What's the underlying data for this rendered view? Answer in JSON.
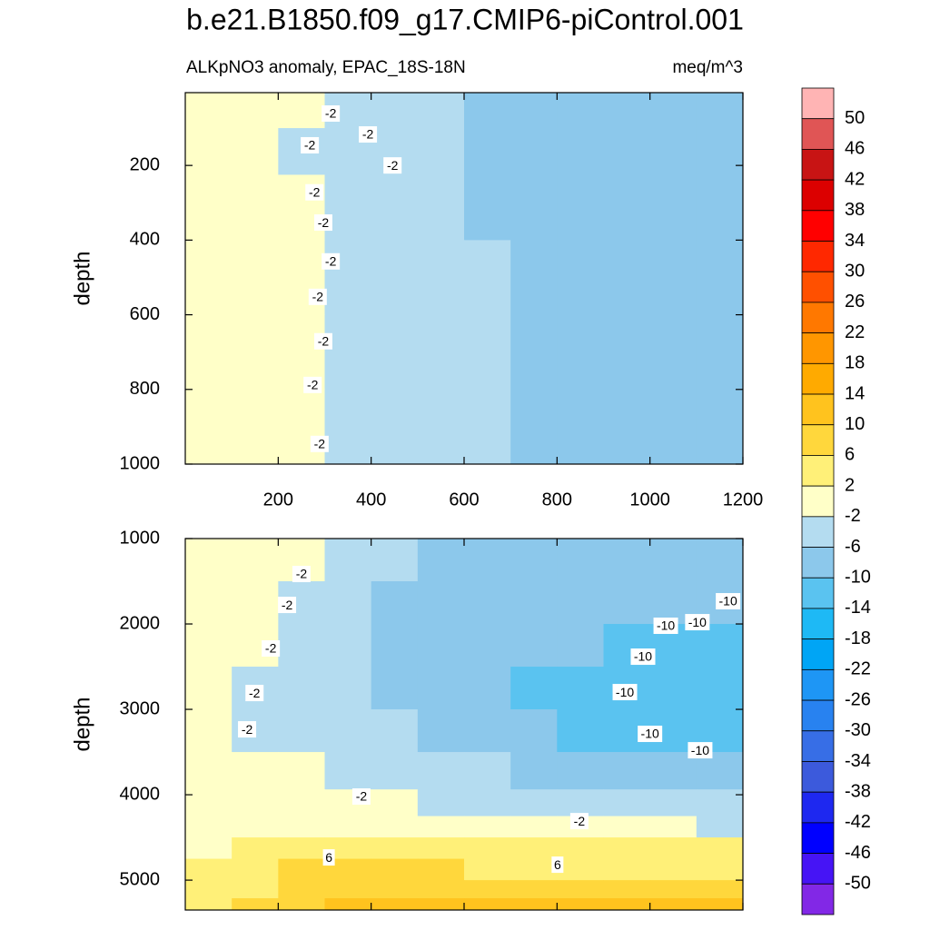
{
  "chart_data": {
    "type": "contour",
    "title": "b.e21.B1850.f09_g17.CMIP6-piControl.001",
    "subtitle_left": "ALKpNO3 anomaly, EPAC_18S-18N",
    "subtitle_right": "meq/m^3",
    "colorbar": {
      "levels": [
        50,
        46,
        42,
        38,
        34,
        30,
        26,
        22,
        18,
        14,
        10,
        6,
        2,
        -2,
        -6,
        -10,
        -14,
        -18,
        -22,
        -26,
        -30,
        -34,
        -38,
        -42,
        -46,
        -50
      ],
      "colors": [
        "#ffb4b4",
        "#e05555",
        "#c81414",
        "#dc0000",
        "#ff0000",
        "#ff2800",
        "#ff5000",
        "#ff7800",
        "#ff9600",
        "#ffaa00",
        "#ffc31e",
        "#ffd73c",
        "#fff078",
        "#ffffc8",
        "#b4dcf0",
        "#8cc8eb",
        "#5ac3f0",
        "#1eb9f5",
        "#00a5f5",
        "#1e96f5",
        "#2882f0",
        "#376ee6",
        "#3c5adc",
        "#1e28f0",
        "#0000ff",
        "#4614f5",
        "#8228e6"
      ]
    },
    "panels": [
      {
        "ylabel": "depth",
        "xlim": [
          0,
          1200
        ],
        "ylim": [
          5,
          1000
        ],
        "xticks": [
          200,
          400,
          600,
          800,
          1000,
          1200
        ],
        "xtick_labels": true,
        "yticks": [
          200,
          400,
          600,
          800,
          1000
        ],
        "y_reversed": true,
        "x": [
          50,
          150,
          250,
          350,
          450,
          550,
          650,
          750,
          850,
          950,
          1050,
          1150
        ],
        "y": [
          50,
          150,
          300,
          500,
          700,
          900
        ],
        "z": [
          [
            0,
            0,
            0,
            -4,
            -4,
            -4,
            -7,
            -7,
            -7,
            -7,
            -7,
            -7
          ],
          [
            0,
            0,
            -4,
            -4,
            -4,
            -4,
            -7,
            -7,
            -7,
            -7,
            -7,
            -7
          ],
          [
            0,
            0,
            0,
            -4,
            -4,
            -4,
            -7,
            -7,
            -7,
            -7,
            -7,
            -7
          ],
          [
            0,
            0,
            0,
            -4,
            -4,
            -4,
            -4,
            -7,
            -7,
            -7,
            -7,
            -7
          ],
          [
            0,
            0,
            0,
            -4,
            -4,
            -4,
            -4,
            -7,
            -7,
            -7,
            -7,
            -7
          ],
          [
            0,
            0,
            0,
            -4,
            -4,
            -4,
            -4,
            -7,
            -7,
            -7,
            -7,
            -7
          ]
        ],
        "annotations": [
          {
            "x": 313,
            "y": 61,
            "value": -2
          },
          {
            "x": 393,
            "y": 117,
            "value": -2
          },
          {
            "x": 268,
            "y": 146,
            "value": -2
          },
          {
            "x": 446,
            "y": 200,
            "value": -2
          },
          {
            "x": 278,
            "y": 272,
            "value": -2
          },
          {
            "x": 297,
            "y": 353,
            "value": -2
          },
          {
            "x": 313,
            "y": 457,
            "value": -2
          },
          {
            "x": 285,
            "y": 552,
            "value": -2
          },
          {
            "x": 297,
            "y": 671,
            "value": -2
          },
          {
            "x": 274,
            "y": 788,
            "value": -2
          },
          {
            "x": 289,
            "y": 946,
            "value": -2
          }
        ]
      },
      {
        "ylabel": "depth",
        "xlim": [
          0,
          1200
        ],
        "ylim": [
          1000,
          5350
        ],
        "xticks": [
          200,
          400,
          600,
          800,
          1000,
          1200
        ],
        "xtick_labels": false,
        "yticks": [
          1000,
          2000,
          3000,
          4000,
          5000
        ],
        "y_reversed": true,
        "x": [
          50,
          150,
          250,
          350,
          450,
          550,
          650,
          750,
          850,
          950,
          1050,
          1150
        ],
        "y": [
          1250,
          1750,
          2250,
          2750,
          3250,
          3750,
          4125,
          4375,
          4625,
          4875,
          5125,
          5300
        ],
        "z": [
          [
            0,
            0,
            0,
            -4,
            -4,
            -7,
            -7,
            -7,
            -7,
            -7,
            -7,
            -7
          ],
          [
            0,
            0,
            -4,
            -4,
            -7,
            -7,
            -7,
            -7,
            -7,
            -7,
            -7,
            -7
          ],
          [
            0,
            0,
            -4,
            -4,
            -7,
            -7,
            -7,
            -7,
            -7,
            -11,
            -11,
            -11
          ],
          [
            0,
            -4,
            -4,
            -4,
            -7,
            -7,
            -7,
            -11,
            -11,
            -11,
            -11,
            -11
          ],
          [
            0,
            -4,
            -4,
            -4,
            -4,
            -7,
            -7,
            -7,
            -11,
            -11,
            -11,
            -11
          ],
          [
            0,
            0,
            -1,
            -4,
            -4,
            -4,
            -4,
            -7,
            -7,
            -7,
            -7,
            -7
          ],
          [
            0,
            0,
            0,
            0,
            0,
            -3,
            -3,
            -3,
            -3,
            -3,
            -3,
            -3
          ],
          [
            0,
            0,
            0,
            0,
            0,
            0,
            0,
            0,
            0,
            0,
            0,
            -3
          ],
          [
            0,
            3,
            3,
            3,
            3,
            3,
            3,
            3,
            3,
            3,
            3,
            3
          ],
          [
            3,
            3,
            8,
            8,
            8,
            8,
            3,
            3,
            3,
            3,
            3,
            3
          ],
          [
            3,
            3,
            8,
            8,
            8,
            8,
            8,
            8,
            8,
            8,
            8,
            8
          ],
          [
            3,
            8,
            8,
            12,
            12,
            12,
            12,
            12,
            12,
            12,
            12,
            12
          ]
        ],
        "annotations": [
          {
            "x": 250,
            "y": 1415,
            "value": -2
          },
          {
            "x": 219,
            "y": 1777,
            "value": -2
          },
          {
            "x": 184,
            "y": 2287,
            "value": -2
          },
          {
            "x": 149,
            "y": 2809,
            "value": -2
          },
          {
            "x": 133,
            "y": 3234,
            "value": -2
          },
          {
            "x": 379,
            "y": 4021,
            "value": -2
          },
          {
            "x": 848,
            "y": 4309,
            "value": -2
          },
          {
            "x": 1034,
            "y": 2021,
            "value": -10
          },
          {
            "x": 1102,
            "y": 1979,
            "value": -10
          },
          {
            "x": 1168,
            "y": 1734,
            "value": -10
          },
          {
            "x": 985,
            "y": 2383,
            "value": -10
          },
          {
            "x": 946,
            "y": 2798,
            "value": -10
          },
          {
            "x": 1000,
            "y": 3287,
            "value": -10
          },
          {
            "x": 1108,
            "y": 3479,
            "value": -10
          },
          {
            "x": 309,
            "y": 4734,
            "value": 6
          },
          {
            "x": 801,
            "y": 4819,
            "value": 6
          }
        ]
      }
    ]
  }
}
